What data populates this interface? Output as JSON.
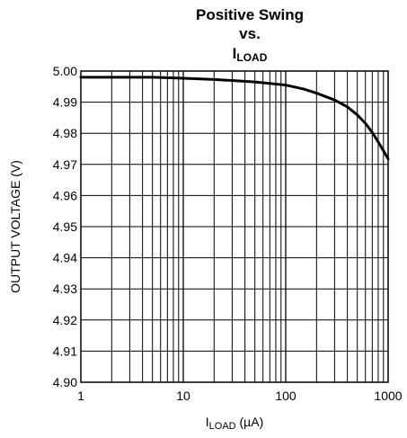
{
  "chart_data": {
    "type": "line",
    "title_line1": "Positive Swing",
    "title_line2": "vs.",
    "title_line3_main": "I",
    "title_line3_sub": "LOAD",
    "xlabel_main": "I",
    "xlabel_sub": "LOAD",
    "xlabel_unit": " (µA)",
    "ylabel": "OUTPUT VOLTAGE (V)",
    "xscale": "log",
    "xlim": [
      1,
      1000
    ],
    "ylim": [
      4.9,
      5.0
    ],
    "grid": true,
    "x_ticks": [
      "1",
      "10",
      "100",
      "1000"
    ],
    "y_ticks": [
      "5.00",
      "4.99",
      "4.98",
      "4.97",
      "4.96",
      "4.95",
      "4.94",
      "4.93",
      "4.92",
      "4.91",
      "4.90"
    ],
    "series": [
      {
        "x": [
          1,
          2,
          5,
          10,
          20,
          50,
          100,
          150,
          200,
          300,
          400,
          500,
          600,
          700,
          800,
          900,
          1000
        ],
        "y": [
          4.998,
          4.998,
          4.998,
          4.9977,
          4.9973,
          4.9965,
          4.9955,
          4.9942,
          4.9929,
          4.9907,
          4.9885,
          4.9859,
          4.9832,
          4.9803,
          4.9772,
          4.9744,
          4.9718
        ]
      }
    ]
  }
}
